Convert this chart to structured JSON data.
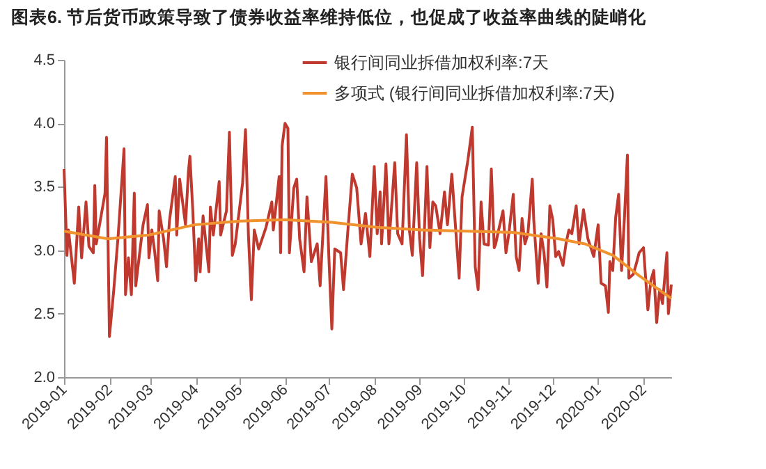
{
  "chart_data": {
    "type": "line",
    "title": "图表6. 节后货币政策导致了债券收益率维持低位，也促成了收益率曲线的陡峭化",
    "xlim": [
      "2019-01-01",
      "2020-02-20"
    ],
    "xticks": [
      "2019-01",
      "2019-02",
      "2019-03",
      "2019-04",
      "2019-05",
      "2019-06",
      "2019-07",
      "2019-08",
      "2019-09",
      "2019-10",
      "2019-11",
      "2019-12",
      "2020-01",
      "2020-02"
    ],
    "ylim": [
      2,
      4.5
    ],
    "yticks": [
      {
        "value": 2,
        "label": "2.0"
      },
      {
        "value": 2.5,
        "label": "2.5"
      },
      {
        "value": 3,
        "label": "3.0"
      },
      {
        "value": 3.5,
        "label": "3.5"
      },
      {
        "value": 4,
        "label": "4.0"
      },
      {
        "value": 4.5,
        "label": "4.5"
      }
    ],
    "grid": false,
    "legend": "top",
    "marker": "none",
    "line_style": "solid",
    "series": [
      {
        "name": "银行间同业拆借加权利率:7天",
        "color": "#c0392f",
        "x": [
          "2019-01-01",
          "2019-01-03",
          "2019-01-04",
          "2019-01-08",
          "2019-01-11",
          "2019-01-13",
          "2019-01-16",
          "2019-01-18",
          "2019-01-21",
          "2019-01-22",
          "2019-01-23",
          "2019-01-29",
          "2019-01-30",
          "2019-02-01",
          "2019-02-04",
          "2019-02-07",
          "2019-02-11",
          "2019-02-12",
          "2019-02-14",
          "2019-02-16",
          "2019-02-18",
          "2019-02-19",
          "2019-02-22",
          "2019-02-24",
          "2019-02-27",
          "2019-02-28",
          "2019-03-02",
          "2019-03-04",
          "2019-03-06",
          "2019-03-07",
          "2019-03-10",
          "2019-03-12",
          "2019-03-14",
          "2019-03-18",
          "2019-03-19",
          "2019-03-21",
          "2019-03-25",
          "2019-03-27",
          "2019-03-28",
          "2019-03-30",
          "2019-04-01",
          "2019-04-03",
          "2019-04-04",
          "2019-04-06",
          "2019-04-10",
          "2019-04-11",
          "2019-04-13",
          "2019-04-17",
          "2019-04-18",
          "2019-04-22",
          "2019-04-24",
          "2019-04-26",
          "2019-04-28",
          "2019-05-03",
          "2019-05-05",
          "2019-05-07",
          "2019-05-09",
          "2019-05-11",
          "2019-05-14",
          "2019-05-19",
          "2019-05-23",
          "2019-05-24",
          "2019-05-28",
          "2019-05-29",
          "2019-05-30",
          "2019-06-01",
          "2019-06-03",
          "2019-06-04",
          "2019-06-07",
          "2019-06-09",
          "2019-06-11",
          "2019-06-14",
          "2019-06-16",
          "2019-06-19",
          "2019-06-23",
          "2019-06-25",
          "2019-06-29",
          "2019-07-01",
          "2019-07-03",
          "2019-07-05",
          "2019-07-09",
          "2019-07-11",
          "2019-07-14",
          "2019-07-17",
          "2019-07-20",
          "2019-07-23",
          "2019-07-26",
          "2019-07-29",
          "2019-08-01",
          "2019-08-03",
          "2019-08-05",
          "2019-08-06",
          "2019-08-09",
          "2019-08-11",
          "2019-08-15",
          "2019-08-17",
          "2019-08-20",
          "2019-08-23",
          "2019-08-25",
          "2019-08-27",
          "2019-08-30",
          "2019-09-01",
          "2019-09-03",
          "2019-09-06",
          "2019-09-08",
          "2019-09-10",
          "2019-09-12",
          "2019-09-15",
          "2019-09-18",
          "2019-09-20",
          "2019-09-23",
          "2019-09-25",
          "2019-09-28",
          "2019-09-30",
          "2019-10-04",
          "2019-10-07",
          "2019-10-09",
          "2019-10-11",
          "2019-10-13",
          "2019-10-15",
          "2019-10-18",
          "2019-10-20",
          "2019-10-22",
          "2019-10-23",
          "2019-10-25",
          "2019-10-28",
          "2019-10-30",
          "2019-11-01",
          "2019-11-04",
          "2019-11-06",
          "2019-11-08",
          "2019-11-10",
          "2019-11-12",
          "2019-11-14",
          "2019-11-17",
          "2019-11-18",
          "2019-11-21",
          "2019-11-23",
          "2019-11-25",
          "2019-11-27",
          "2019-11-29",
          "2019-12-01",
          "2019-12-03",
          "2019-12-05",
          "2019-12-08",
          "2019-12-10",
          "2019-12-12",
          "2019-12-14",
          "2019-12-17",
          "2019-12-19",
          "2019-12-22",
          "2019-12-25",
          "2019-12-27",
          "2019-12-29",
          "2020-01-01",
          "2020-01-03",
          "2020-01-06",
          "2020-01-08",
          "2020-01-09",
          "2020-01-11",
          "2020-01-13",
          "2020-01-15",
          "2020-01-17",
          "2020-01-19",
          "2020-01-21",
          "2020-01-22",
          "2020-01-25",
          "2020-01-27",
          "2020-01-29",
          "2020-02-01",
          "2020-02-04",
          "2020-02-06",
          "2020-02-08",
          "2020-02-10",
          "2020-02-12",
          "2020-02-14",
          "2020-02-17",
          "2020-02-18",
          "2020-02-20"
        ],
        "values": [
          3.64,
          2.96,
          3.16,
          2.74,
          3.34,
          2.94,
          3.38,
          3.03,
          2.98,
          3.51,
          3.05,
          3.45,
          3.89,
          2.32,
          2.69,
          3.12,
          3.8,
          2.65,
          2.94,
          2.65,
          3.45,
          2.72,
          3.01,
          3.2,
          3.36,
          2.94,
          3.16,
          2.98,
          2.76,
          3.31,
          3.09,
          2.87,
          3.23,
          3.58,
          3.12,
          3.56,
          3.2,
          3.62,
          3.74,
          3.31,
          2.76,
          3.09,
          2.83,
          3.27,
          2.83,
          3.34,
          3.12,
          3.54,
          3.12,
          3.31,
          3.93,
          2.96,
          3.05,
          3.53,
          3.95,
          3.12,
          2.61,
          3.16,
          3.01,
          3.18,
          3.38,
          3.16,
          3.58,
          2.98,
          3.82,
          4.0,
          3.96,
          2.98,
          3.49,
          3.56,
          3.09,
          2.83,
          3.42,
          2.91,
          3.05,
          2.72,
          3.58,
          2.94,
          2.38,
          3.01,
          2.98,
          2.69,
          3.16,
          3.6,
          3.49,
          3.05,
          3.29,
          2.95,
          3.66,
          3.13,
          3.46,
          3.05,
          3.68,
          3.05,
          3.69,
          3.13,
          3.05,
          3.91,
          3.16,
          2.96,
          3.69,
          3.09,
          2.8,
          3.66,
          3.02,
          3.38,
          3.35,
          3.13,
          3.46,
          3.2,
          3.6,
          3.27,
          2.78,
          3.42,
          3.71,
          3.97,
          2.87,
          2.69,
          3.38,
          3.05,
          3.04,
          3.64,
          3.02,
          3.05,
          3.16,
          3.31,
          2.98,
          3.13,
          3.44,
          2.95,
          2.84,
          3.25,
          3.05,
          3.13,
          3.56,
          3.24,
          2.74,
          3.13,
          2.98,
          2.71,
          3.35,
          3.24,
          2.95,
          2.99,
          2.88,
          3.05,
          3.16,
          3.13,
          3.35,
          3.05,
          3.32,
          3.09,
          3.02,
          2.95,
          3.2,
          2.74,
          2.72,
          2.51,
          2.91,
          2.84,
          3.26,
          3.44,
          2.84,
          3.26,
          3.75,
          2.78,
          2.81,
          2.89,
          2.98,
          3.02,
          2.53,
          2.76,
          2.84,
          2.43,
          2.69,
          2.58,
          2.98,
          2.5,
          2.73
        ]
      },
      {
        "name": "多项式 (银行间同业拆借加权利率:7天)",
        "color": "#f0932e",
        "x": [
          "2019-01-01",
          "2019-01-31",
          "2019-02-28",
          "2019-03-31",
          "2019-05-01",
          "2019-06-01",
          "2019-07-03",
          "2019-08-03",
          "2019-09-03",
          "2019-10-04",
          "2019-11-04",
          "2019-12-05",
          "2019-12-23",
          "2020-01-11",
          "2020-01-29",
          "2020-02-20"
        ],
        "values": [
          3.15,
          3.09,
          3.12,
          3.2,
          3.23,
          3.24,
          3.22,
          3.18,
          3.16,
          3.15,
          3.14,
          3.09,
          3.05,
          2.96,
          2.8,
          2.62
        ]
      }
    ]
  }
}
